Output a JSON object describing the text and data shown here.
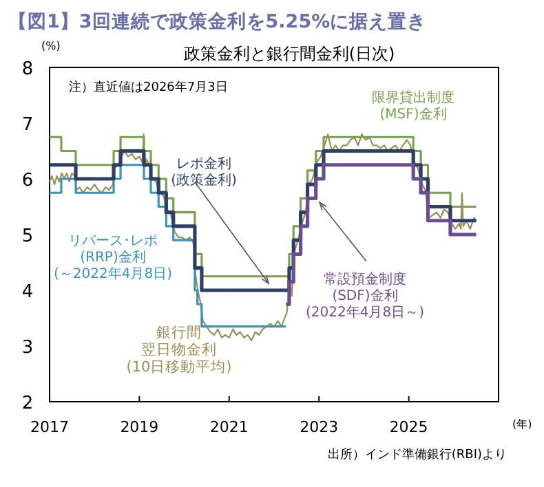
{
  "chart_data": {
    "type": "line",
    "title": "【図1】3回連続で政策金利を5.25%に据え置き",
    "subtitle": "政策金利と銀行間金利(日次)",
    "ylabel": "(%)",
    "xlabel": "(年)",
    "annotations": [
      "注）直近値は2026年7月3日",
      "出所）インド準備銀行(RBI)より"
    ],
    "xlim": [
      "2017-01-01",
      "2027-01-01"
    ],
    "xticks": [
      {
        "value": "2017-01-01",
        "label": "2017"
      },
      {
        "value": "2019-01-01",
        "label": "2019"
      },
      {
        "value": "2021-01-01",
        "label": "2021"
      },
      {
        "value": "2023-01-01",
        "label": "2023"
      },
      {
        "value": "2025-01-01",
        "label": "2025"
      }
    ],
    "ylim": [
      2,
      8
    ],
    "yticks": [
      2,
      3,
      4,
      5,
      6,
      7,
      8
    ],
    "grid": false,
    "legend": false,
    "series": [
      {
        "name": "銀行間翌日物金利(10日移動平均)",
        "type": "line",
        "color": "#9a8f5a",
        "x": [
          "2017-01-01",
          "2017-01-20",
          "2017-02-10",
          "2017-03-01",
          "2017-03-20",
          "2017-04-10",
          "2017-05-01",
          "2017-05-20",
          "2017-06-10",
          "2017-07-01",
          "2017-07-25",
          "2017-08-10",
          "2017-09-01",
          "2017-10-01",
          "2017-11-01",
          "2017-12-01",
          "2018-01-01",
          "2018-02-01",
          "2018-03-01",
          "2018-04-01",
          "2018-05-01",
          "2018-06-01",
          "2018-06-15",
          "2018-07-15",
          "2018-08-10",
          "2018-09-01",
          "2018-10-01",
          "2018-11-01",
          "2018-12-01",
          "2019-01-01",
          "2019-01-25",
          "2019-02-05",
          "2019-02-12",
          "2019-03-01",
          "2019-04-01",
          "2019-04-15",
          "2019-05-15",
          "2019-06-15",
          "2019-07-15",
          "2019-08-15",
          "2019-09-15",
          "2019-10-15",
          "2019-11-15",
          "2019-12-15",
          "2020-01-15",
          "2020-02-15",
          "2020-03-15",
          "2020-04-01",
          "2020-04-20",
          "2020-05-15",
          "2020-06-01",
          "2020-07-01",
          "2020-08-01",
          "2020-09-01",
          "2020-10-01",
          "2020-11-01",
          "2020-12-01",
          "2021-01-01",
          "2021-02-01",
          "2021-03-01",
          "2021-04-01",
          "2021-05-01",
          "2021-06-01",
          "2021-07-01",
          "2021-08-01",
          "2021-09-01",
          "2021-10-01",
          "2021-11-01",
          "2021-12-01",
          "2022-01-01",
          "2022-02-01",
          "2022-03-01",
          "2022-04-15",
          "2022-05-10",
          "2022-05-25",
          "2022-06-15",
          "2022-07-15",
          "2022-08-15",
          "2022-09-15",
          "2022-10-10",
          "2022-11-10",
          "2022-12-15",
          "2023-01-15",
          "2023-02-15",
          "2023-03-15",
          "2023-04-15",
          "2023-05-15",
          "2023-06-15",
          "2023-07-15",
          "2023-08-15",
          "2023-09-15",
          "2023-10-15",
          "2023-11-15",
          "2023-12-15",
          "2024-01-15",
          "2024-02-15",
          "2024-03-15",
          "2024-04-15",
          "2024-05-15",
          "2024-06-15",
          "2024-07-15",
          "2024-08-15",
          "2024-09-15",
          "2024-10-15",
          "2024-11-15",
          "2024-12-15",
          "2025-01-15",
          "2025-02-15",
          "2025-03-15",
          "2025-04-20",
          "2025-05-15",
          "2025-06-15",
          "2025-07-15",
          "2025-08-15",
          "2025-09-15",
          "2025-10-15",
          "2025-11-15",
          "2025-12-15",
          "2026-01-15",
          "2026-02-15",
          "2026-03-01",
          "2026-03-10",
          "2026-03-20",
          "2026-04-15",
          "2026-05-15",
          "2026-06-15",
          "2026-07-03"
        ],
        "values": [
          5.95,
          6.05,
          5.9,
          6.05,
          5.95,
          6.1,
          6.0,
          6.1,
          5.95,
          6.1,
          6.05,
          5.8,
          5.85,
          5.75,
          5.85,
          5.8,
          5.9,
          5.8,
          5.75,
          5.85,
          5.8,
          5.9,
          6.2,
          6.25,
          6.4,
          6.5,
          6.4,
          6.45,
          6.35,
          6.4,
          6.3,
          6.8,
          6.2,
          6.35,
          6.2,
          6.0,
          5.95,
          5.75,
          5.7,
          5.45,
          5.35,
          5.05,
          4.95,
          4.95,
          4.9,
          4.95,
          4.85,
          4.3,
          4.0,
          3.75,
          3.45,
          3.35,
          3.25,
          3.2,
          3.3,
          3.15,
          3.2,
          3.15,
          3.3,
          3.2,
          3.25,
          3.15,
          3.2,
          3.1,
          3.25,
          3.2,
          3.3,
          3.35,
          3.4,
          3.35,
          3.45,
          3.35,
          3.6,
          4.1,
          3.9,
          4.7,
          4.9,
          5.2,
          5.4,
          5.9,
          6.0,
          6.3,
          6.4,
          6.6,
          6.8,
          6.5,
          6.6,
          6.5,
          6.6,
          6.6,
          6.7,
          6.75,
          6.6,
          6.8,
          6.7,
          6.75,
          6.6,
          6.6,
          6.55,
          6.6,
          6.5,
          6.55,
          6.6,
          6.5,
          6.6,
          6.7,
          6.6,
          6.3,
          6.2,
          5.9,
          5.8,
          5.3,
          5.35,
          5.4,
          5.3,
          5.45,
          5.4,
          5.2,
          5.1,
          5.2,
          5.1,
          5.75,
          5.15,
          5.25,
          5.1,
          5.3,
          5.25
        ]
      },
      {
        "name": "限界貸出制度(MSF)金利",
        "type": "step",
        "color": "#7aa050",
        "x": [
          "2017-01-01",
          "2017-04-06",
          "2017-08-02",
          "2018-06-06",
          "2018-08-01",
          "2019-02-07",
          "2019-04-04",
          "2019-06-06",
          "2019-08-07",
          "2019-10-04",
          "2020-03-27",
          "2020-05-22",
          "2022-05-04",
          "2022-06-08",
          "2022-08-05",
          "2022-09-30",
          "2022-12-07",
          "2023-02-08",
          "2025-02-07",
          "2025-04-09",
          "2025-06-06",
          "2025-12-05",
          "2026-07-03"
        ],
        "values": [
          6.75,
          6.5,
          6.25,
          6.5,
          6.75,
          6.5,
          6.25,
          6.0,
          5.65,
          5.4,
          4.65,
          4.25,
          4.65,
          5.15,
          5.65,
          6.15,
          6.5,
          6.75,
          6.5,
          6.25,
          5.75,
          5.5,
          5.5
        ]
      },
      {
        "name": "リバース･レポ(RRP)金利(～2022年4月8日)",
        "type": "step",
        "color": "#3a93b8",
        "x": [
          "2017-01-01",
          "2017-04-06",
          "2017-08-02",
          "2018-06-06",
          "2018-08-01",
          "2019-02-07",
          "2019-04-04",
          "2019-06-06",
          "2019-08-07",
          "2019-10-04",
          "2020-03-27",
          "2020-04-17",
          "2020-05-22",
          "2022-04-08"
        ],
        "values": [
          5.75,
          6.0,
          5.75,
          6.0,
          6.25,
          6.0,
          5.75,
          5.5,
          5.15,
          4.9,
          4.0,
          3.75,
          3.35,
          3.35
        ]
      },
      {
        "name": "レポ金利(政策金利)",
        "type": "step",
        "color": "#2e3f66",
        "x": [
          "2017-01-01",
          "2017-08-02",
          "2018-06-06",
          "2018-08-01",
          "2019-02-07",
          "2019-04-04",
          "2019-06-06",
          "2019-08-07",
          "2019-10-04",
          "2020-03-27",
          "2020-05-22",
          "2022-05-04",
          "2022-06-08",
          "2022-08-05",
          "2022-09-30",
          "2022-12-07",
          "2023-02-08",
          "2025-02-07",
          "2025-04-09",
          "2025-06-06",
          "2025-12-05",
          "2026-07-03"
        ],
        "values": [
          6.25,
          6.0,
          6.25,
          6.5,
          6.25,
          6.0,
          5.75,
          5.4,
          5.15,
          4.4,
          4.0,
          4.4,
          4.9,
          5.4,
          5.9,
          6.25,
          6.5,
          6.25,
          6.0,
          5.5,
          5.25,
          5.25
        ]
      },
      {
        "name": "常設預金制度(SDF)金利(2022年4月8日～)",
        "type": "step",
        "color": "#6a4e8f",
        "x": [
          "2022-04-08",
          "2022-05-04",
          "2022-06-08",
          "2022-08-05",
          "2022-09-30",
          "2022-12-07",
          "2023-02-08",
          "2025-02-07",
          "2025-04-09",
          "2025-06-06",
          "2025-12-05",
          "2026-07-03"
        ],
        "values": [
          3.75,
          4.15,
          4.65,
          5.15,
          5.65,
          6.0,
          6.25,
          6.0,
          5.75,
          5.25,
          5.0,
          5.0
        ]
      }
    ]
  }
}
